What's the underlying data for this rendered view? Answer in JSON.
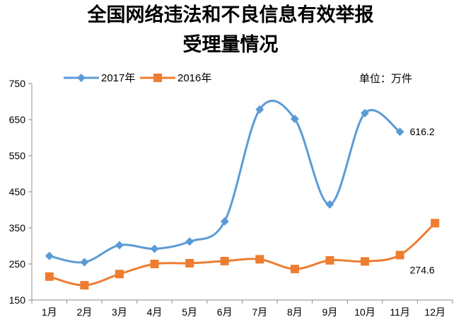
{
  "chart_data": {
    "type": "line",
    "title": [
      "全国网络违法和不良信息有效举报",
      "受理量情况"
    ],
    "unit_label": "单位：万件",
    "categories": [
      "1月",
      "2月",
      "3月",
      "4月",
      "5月",
      "6月",
      "7月",
      "8月",
      "9月",
      "10月",
      "11月",
      "12月"
    ],
    "ylim": [
      150,
      750
    ],
    "yticks": [
      "750",
      "650",
      "550",
      "450",
      "350",
      "250",
      "150"
    ],
    "grid": false,
    "legend_position": "top-left",
    "series": [
      {
        "name": "2017年",
        "color": "#5b9bd5",
        "marker": "diamond",
        "values": [
          272,
          255,
          302,
          292,
          312,
          368,
          678,
          652,
          415,
          668,
          616.2,
          null
        ],
        "end_label": "616.2"
      },
      {
        "name": "2016年",
        "color": "#ed7d31",
        "marker": "square",
        "values": [
          215,
          191,
          222,
          250,
          252,
          258,
          263,
          236,
          260,
          257,
          274.6,
          363
        ],
        "end_label": "274.6"
      }
    ]
  }
}
